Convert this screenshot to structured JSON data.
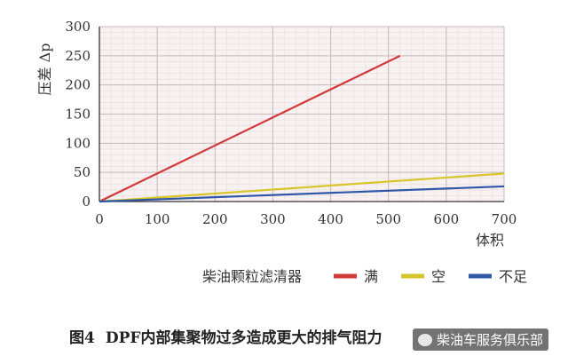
{
  "chart_data": {
    "type": "line",
    "ylabel": "压差 Δp",
    "xlabel": "体积",
    "xlim": [
      0,
      700
    ],
    "ylim": [
      0,
      300
    ],
    "x_ticks": [
      0,
      100,
      200,
      300,
      400,
      500,
      600,
      700
    ],
    "y_ticks": [
      0,
      50,
      100,
      150,
      200,
      250,
      300
    ],
    "grid": true,
    "legend_position": "bottom",
    "legend_title": "柴油颗粒滤清器",
    "series": [
      {
        "name": "满",
        "color": "#d23a3a",
        "x": [
          0,
          520
        ],
        "y": [
          0,
          250
        ]
      },
      {
        "name": "空",
        "color": "#d8c52a",
        "x": [
          0,
          700
        ],
        "y": [
          0,
          48
        ]
      },
      {
        "name": "不足",
        "color": "#2f57a8",
        "x": [
          0,
          700
        ],
        "y": [
          0,
          26
        ]
      }
    ]
  },
  "caption": {
    "figure": "图4",
    "text": "DPF内部集聚物过多造成更大的排气阻力"
  },
  "watermark": {
    "text": "柴油车服务俱乐部",
    "icon": "wechat-icon"
  }
}
